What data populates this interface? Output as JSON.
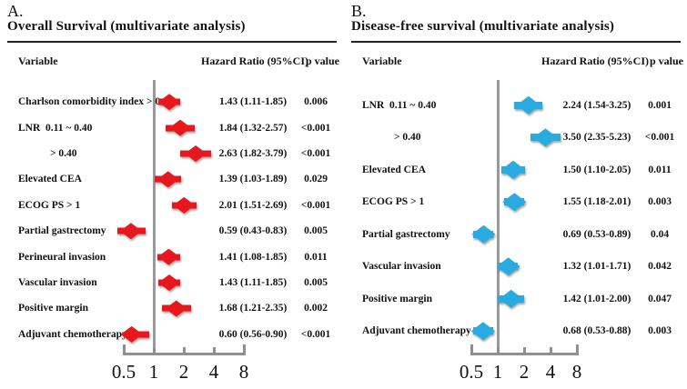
{
  "figure": {
    "background": "#ffffff",
    "ref_line_color": "#9a9a9a",
    "axis_color": "#8f8f8f"
  },
  "chart_data": [
    {
      "type": "scatter",
      "variant": "forest-plot",
      "panel_label": "A.",
      "title": "Overall Survival (multivariate analysis)",
      "columns": {
        "variable": "Variable",
        "hazard_ratio": "Hazard Ratio (95%CI)",
        "p_value": "p value"
      },
      "marker_color": "#e8161d",
      "axis": {
        "scale": "log2",
        "ticks": [
          0.5,
          1,
          2,
          4,
          8
        ],
        "tick_labels": [
          "0.5",
          "1",
          "2",
          "4",
          "8"
        ],
        "ref_line": 1
      },
      "rows": [
        {
          "label": "Charlson comorbidity index > 0",
          "indent": false,
          "hr": 1.43,
          "ci_low": 1.11,
          "ci_high": 1.85,
          "hr_text": "1.43 (1.11-1.85)",
          "p": "0.006"
        },
        {
          "label": "LNR  0.11 ~ 0.40",
          "indent": false,
          "hr": 1.84,
          "ci_low": 1.32,
          "ci_high": 2.57,
          "hr_text": "1.84 (1.32-2.57)",
          "p": "<0.001"
        },
        {
          "label": "> 0.40",
          "indent": true,
          "hr": 2.63,
          "ci_low": 1.82,
          "ci_high": 3.79,
          "hr_text": "2.63 (1.82-3.79)",
          "p": "<0.001"
        },
        {
          "label": "Elevated CEA",
          "indent": false,
          "hr": 1.39,
          "ci_low": 1.03,
          "ci_high": 1.89,
          "hr_text": "1.39 (1.03-1.89)",
          "p": "0.029"
        },
        {
          "label": "ECOG PS > 1",
          "indent": false,
          "hr": 2.01,
          "ci_low": 1.51,
          "ci_high": 2.69,
          "hr_text": "2.01 (1.51-2.69)",
          "p": "<0.001"
        },
        {
          "label": "Partial gastrectomy",
          "indent": false,
          "hr": 0.59,
          "ci_low": 0.43,
          "ci_high": 0.83,
          "hr_text": "0.59 (0.43-0.83)",
          "p": "0.005"
        },
        {
          "label": "Perineural invasion",
          "indent": false,
          "hr": 1.41,
          "ci_low": 1.08,
          "ci_high": 1.85,
          "hr_text": "1.41 (1.08-1.85)",
          "p": "0.011"
        },
        {
          "label": "Vascular invasion",
          "indent": false,
          "hr": 1.43,
          "ci_low": 1.11,
          "ci_high": 1.85,
          "hr_text": "1.43 (1.11-1.85)",
          "p": "0.005"
        },
        {
          "label": "Positive margin",
          "indent": false,
          "hr": 1.68,
          "ci_low": 1.21,
          "ci_high": 2.35,
          "hr_text": "1.68 (1.21-2.35)",
          "p": "0.002"
        },
        {
          "label": "Adjuvant chemotherapy",
          "indent": false,
          "hr": 0.6,
          "ci_low": 0.56,
          "ci_high": 0.9,
          "hr_text": "0.60 (0.56-0.90)",
          "p": "<0.001"
        }
      ]
    },
    {
      "type": "scatter",
      "variant": "forest-plot",
      "panel_label": "B.",
      "title": "Disease-free survival (multivariate analysis)",
      "columns": {
        "variable": "Variable",
        "hazard_ratio": "Hazard Ratio (95%CI)",
        "p_value": "p value"
      },
      "marker_color": "#29abe2",
      "axis": {
        "scale": "log2",
        "ticks": [
          0.5,
          1,
          2,
          4,
          8
        ],
        "tick_labels": [
          "0.5",
          "1",
          "2",
          "4",
          "8"
        ],
        "ref_line": 1
      },
      "rows": [
        {
          "label": "LNR  0.11 ~ 0.40",
          "indent": false,
          "hr": 2.24,
          "ci_low": 1.54,
          "ci_high": 3.25,
          "hr_text": "2.24 (1.54-3.25)",
          "p": "0.001"
        },
        {
          "label": "> 0.40",
          "indent": true,
          "hr": 3.5,
          "ci_low": 2.35,
          "ci_high": 5.23,
          "hr_text": "3.50 (2.35-5.23)",
          "p": "<0.001"
        },
        {
          "label": "Elevated CEA",
          "indent": false,
          "hr": 1.5,
          "ci_low": 1.1,
          "ci_high": 2.05,
          "hr_text": "1.50 (1.10-2.05)",
          "p": "0.011"
        },
        {
          "label": "ECOG PS > 1",
          "indent": false,
          "hr": 1.55,
          "ci_low": 1.18,
          "ci_high": 2.01,
          "hr_text": "1.55 (1.18-2.01)",
          "p": "0.003"
        },
        {
          "label": "Partial gastrectomy",
          "indent": false,
          "hr": 0.69,
          "ci_low": 0.53,
          "ci_high": 0.89,
          "hr_text": "0.69 (0.53-0.89)",
          "p": "0.04"
        },
        {
          "label": "Vascular invasion",
          "indent": false,
          "hr": 1.32,
          "ci_low": 1.01,
          "ci_high": 1.71,
          "hr_text": "1.32 (1.01-1.71)",
          "p": "0.042"
        },
        {
          "label": "Positive margin",
          "indent": false,
          "hr": 1.42,
          "ci_low": 1.01,
          "ci_high": 2.0,
          "hr_text": "1.42 (1.01-2.00)",
          "p": "0.047"
        },
        {
          "label": "Adjuvant chemotherapy",
          "indent": false,
          "hr": 0.68,
          "ci_low": 0.53,
          "ci_high": 0.88,
          "hr_text": "0.68 (0.53-0.88)",
          "p": "0.003"
        }
      ]
    }
  ]
}
